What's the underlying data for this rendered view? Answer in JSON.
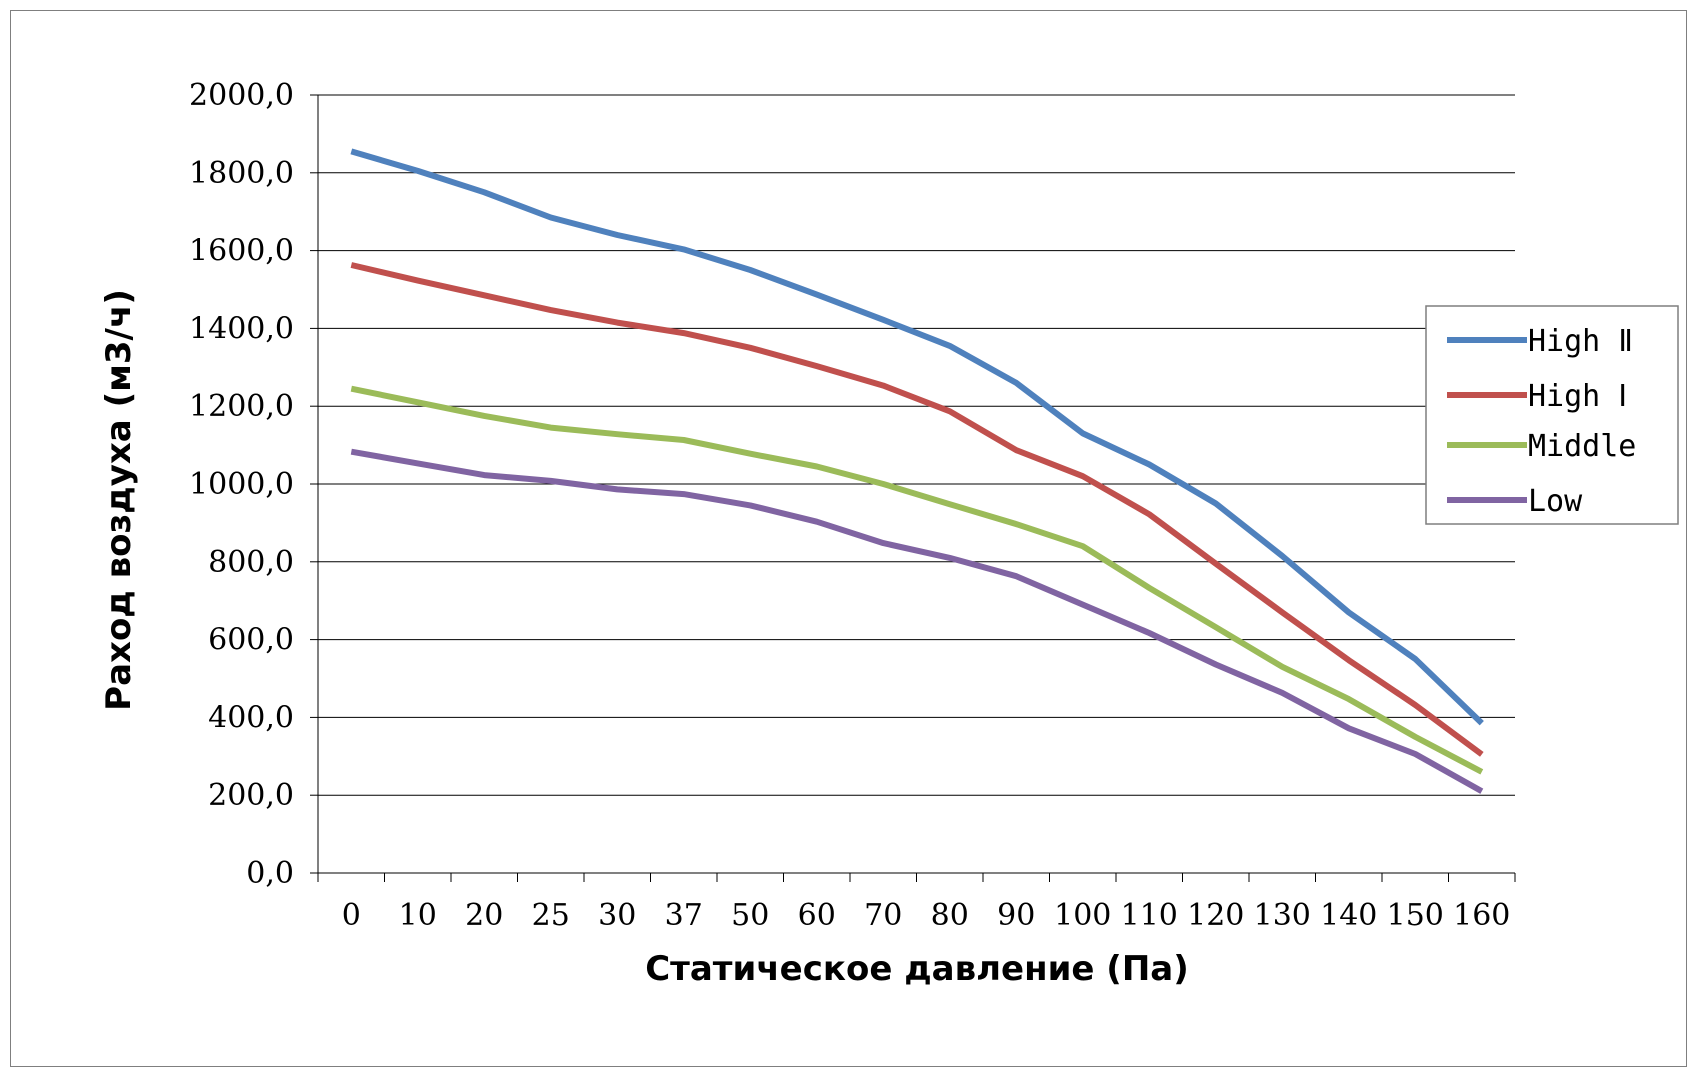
{
  "chart_data": {
    "type": "line",
    "xlabel": "Статическое давление (Па)",
    "ylabel": "Раход воздуха (м3/ч)",
    "categories": [
      "0",
      "10",
      "20",
      "25",
      "30",
      "37",
      "50",
      "60",
      "70",
      "80",
      "90",
      "100",
      "110",
      "120",
      "130",
      "140",
      "150",
      "160"
    ],
    "ylim": [
      0,
      2000
    ],
    "yticks": [
      "0,0",
      "200,0",
      "400,0",
      "600,0",
      "800,0",
      "1000,0",
      "1200,0",
      "1400,0",
      "1600,0",
      "1800,0",
      "2000,0"
    ],
    "grid": true,
    "legend_position": "right",
    "series": [
      {
        "name": "High Ⅱ",
        "color": "#4f81bd",
        "values": [
          1855,
          1805,
          1750,
          1685,
          1640,
          1603,
          1550,
          1487,
          1422,
          1355,
          1260,
          1130,
          1050,
          950,
          815,
          670,
          550,
          385
        ]
      },
      {
        "name": "High Ⅰ",
        "color": "#c0504d",
        "values": [
          1563,
          1523,
          1485,
          1447,
          1415,
          1388,
          1350,
          1303,
          1253,
          1187,
          1087,
          1020,
          922,
          795,
          670,
          547,
          432,
          305
        ]
      },
      {
        "name": "Middle",
        "color": "#9bbb59",
        "values": [
          1245,
          1210,
          1175,
          1145,
          1128,
          1113,
          1078,
          1045,
          1000,
          948,
          897,
          840,
          733,
          632,
          530,
          447,
          350,
          260
        ]
      },
      {
        "name": "Low",
        "color": "#8064a2",
        "values": [
          1083,
          1053,
          1023,
          1008,
          986,
          974,
          945,
          903,
          848,
          810,
          763,
          690,
          617,
          536,
          463,
          372,
          306,
          210
        ]
      }
    ]
  }
}
